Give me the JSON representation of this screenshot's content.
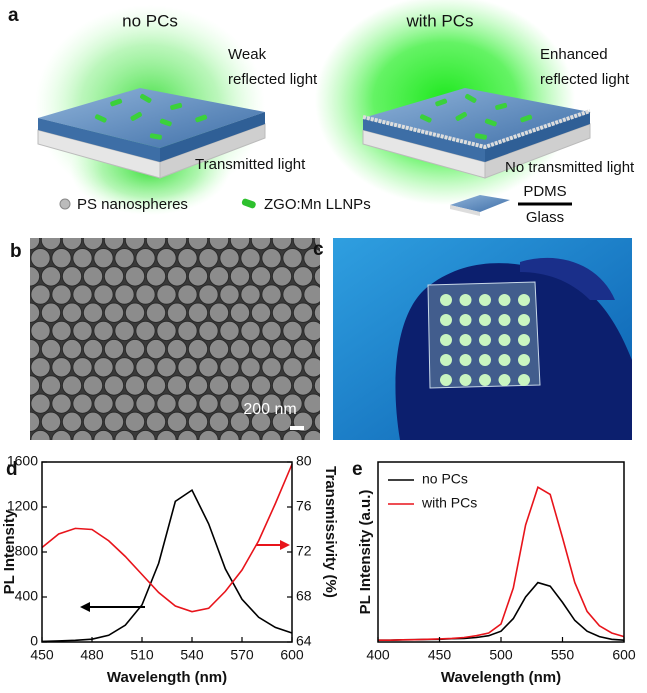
{
  "panel_labels": [
    "a",
    "b",
    "c",
    "d",
    "e"
  ],
  "panel_a": {
    "left_title": "no PCs",
    "right_title": "with PCs",
    "left_reflect": [
      "Weak",
      "reflected light"
    ],
    "right_reflect": [
      "Enhanced",
      "reflected light"
    ],
    "left_transmit": "Transmitted light",
    "right_transmit": "No transmitted light",
    "legend": [
      "PS nanospheres",
      "ZGO:Mn LLNPs"
    ],
    "layer_top": "PDMS",
    "layer_bottom": "Glass"
  },
  "panel_b": {
    "scale_bar": "200 nm"
  },
  "chart_data": [
    {
      "type": "line",
      "xlabel": "Wavelength (nm)",
      "ylabel": "PL Intensity",
      "y2label": "Transmissivity (%)",
      "x": [
        450,
        460,
        470,
        480,
        490,
        500,
        510,
        520,
        530,
        540,
        550,
        560,
        570,
        580,
        590,
        600
      ],
      "series": [
        {
          "color": "#000000",
          "values": [
            5,
            10,
            15,
            25,
            60,
            150,
            330,
            700,
            1250,
            1350,
            1050,
            650,
            380,
            220,
            130,
            80
          ]
        },
        {
          "color": "#e8141b",
          "axis": "y2",
          "values": [
            72.4,
            73.6,
            74.1,
            74,
            73,
            71.6,
            70,
            68.4,
            67.2,
            66.7,
            67,
            68.5,
            70.4,
            73,
            76.3,
            79.8
          ]
        }
      ],
      "xlim": [
        450,
        600
      ],
      "xticks": [
        450,
        480,
        510,
        540,
        570,
        600
      ],
      "ylim": [
        0,
        1600
      ],
      "yticks": [
        0,
        400,
        800,
        1200,
        1600
      ],
      "y2lim": [
        64,
        80
      ],
      "y2ticks": [
        64,
        68,
        72,
        76,
        80
      ]
    },
    {
      "type": "line",
      "xlabel": "Wavelength (nm)",
      "ylabel": "PL Intensity (a.u.)",
      "legend": "upper left",
      "x": [
        400,
        410,
        420,
        430,
        440,
        450,
        460,
        470,
        480,
        490,
        500,
        510,
        520,
        530,
        540,
        550,
        560,
        570,
        580,
        590,
        600
      ],
      "series": [
        {
          "name": "no PCs",
          "color": "#000000",
          "values": [
            0.01,
            0.01,
            0.012,
            0.013,
            0.014,
            0.015,
            0.018,
            0.02,
            0.025,
            0.035,
            0.06,
            0.13,
            0.25,
            0.33,
            0.31,
            0.22,
            0.12,
            0.06,
            0.03,
            0.015,
            0.01
          ]
        },
        {
          "name": "with PCs",
          "color": "#e8141b",
          "values": [
            0.01,
            0.01,
            0.012,
            0.013,
            0.015,
            0.017,
            0.02,
            0.025,
            0.035,
            0.05,
            0.1,
            0.3,
            0.65,
            0.86,
            0.82,
            0.58,
            0.33,
            0.17,
            0.09,
            0.05,
            0.03
          ]
        }
      ],
      "xlim": [
        400,
        600
      ],
      "xticks": [
        400,
        450,
        500,
        550,
        600
      ],
      "ylim": [
        0,
        1
      ]
    }
  ]
}
